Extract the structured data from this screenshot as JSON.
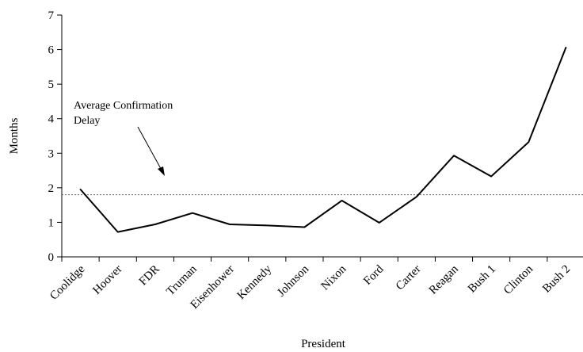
{
  "chart_data": {
    "type": "line",
    "title": "",
    "xlabel": "President",
    "ylabel": "Months",
    "categories": [
      "Coolidge",
      "Hoover",
      "FDR",
      "Truman",
      "Eisenhower",
      "Kennedy",
      "Johnson",
      "Nixon",
      "Ford",
      "Carter",
      "Reagan",
      "Bush 1",
      "Clinton",
      "Bush 2"
    ],
    "series": [
      {
        "values": [
          1.95,
          0.72,
          0.94,
          1.27,
          0.94,
          0.91,
          0.86,
          1.63,
          0.99,
          1.74,
          2.93,
          2.33,
          3.32,
          6.06
        ]
      }
    ],
    "ylim": [
      0,
      7
    ],
    "yticks": [
      "0",
      "1",
      "2",
      "3",
      "4",
      "5",
      "6",
      "7"
    ],
    "reference_line": {
      "value": 1.8,
      "style": "dotted"
    },
    "annotation": {
      "lines": [
        "Average Confirmation",
        "Delay"
      ],
      "points_to": "reference_line"
    },
    "grid": false,
    "legend": "none"
  },
  "colors": {
    "line": "#000000",
    "axis": "#000000",
    "reference_line": "#666666"
  }
}
